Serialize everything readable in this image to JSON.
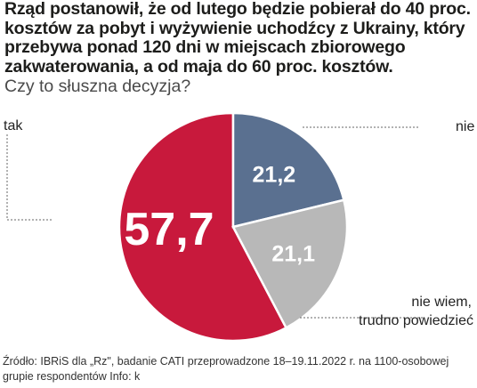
{
  "chart_data": {
    "type": "pie",
    "title": "Rząd postanowił, że od lutego będzie pobierał  do 40 proc. kosztów za pobyt i wyżywienie uchodźcy z Ukrainy, który przebywa ponad 120 dni w miejscach zbiorowego zakwaterowania, a od maja do 60 proc. kosztów.",
    "subtitle": "Czy to słuszna decyzja?",
    "slices": [
      {
        "label": "tak",
        "value": 57.7,
        "value_label": "57,7",
        "color": "#c8193c"
      },
      {
        "label": "nie",
        "value": 21.2,
        "value_label": "21,2",
        "color": "#5a7090"
      },
      {
        "label": "nie wiem, trudno powiedzieć",
        "value": 21.1,
        "value_label": "21,1",
        "color": "#b8b8b8"
      }
    ],
    "source": "Źródło: IBRiS dla „Rz\", badanie CATI przeprowadzone 18–19.11.2022 r. na 1100-osobowej grupie respondentów Info: k"
  },
  "label_lines": {
    "slice_tak": "tak",
    "slice_nie": "nie",
    "slice_niewiem_1": "nie wiem,",
    "slice_niewiem_2": "trudno powiedzieć"
  }
}
